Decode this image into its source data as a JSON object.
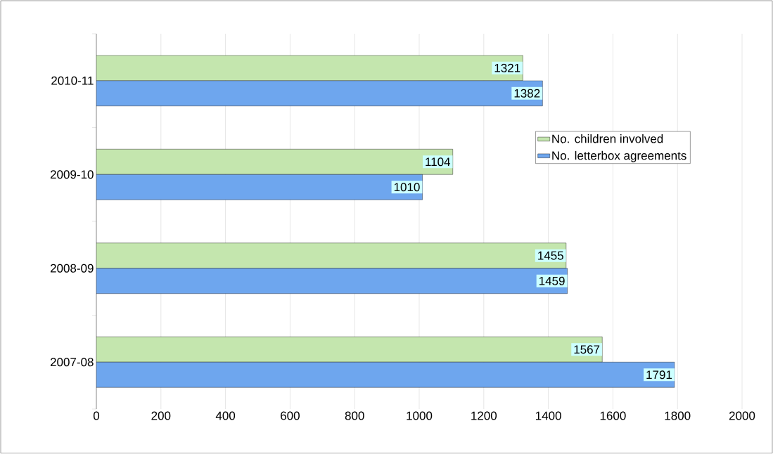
{
  "chart_data": {
    "type": "bar",
    "orientation": "horizontal",
    "categories": [
      "2010-11",
      "2009-10",
      "2008-09",
      "2007-08"
    ],
    "series": [
      {
        "name": "No. children involved",
        "color": "#c4e6ae",
        "values": [
          1321,
          1104,
          1455,
          1567
        ]
      },
      {
        "name": "No. letterbox agreements",
        "color": "#6ea6ee",
        "values": [
          1382,
          1010,
          1459,
          1791
        ]
      }
    ],
    "xlim": [
      0,
      2000
    ],
    "xticks": [
      0,
      200,
      400,
      600,
      800,
      1000,
      1200,
      1400,
      1600,
      1800,
      2000
    ],
    "grid": "x",
    "legend": "right",
    "data_labels": true
  }
}
